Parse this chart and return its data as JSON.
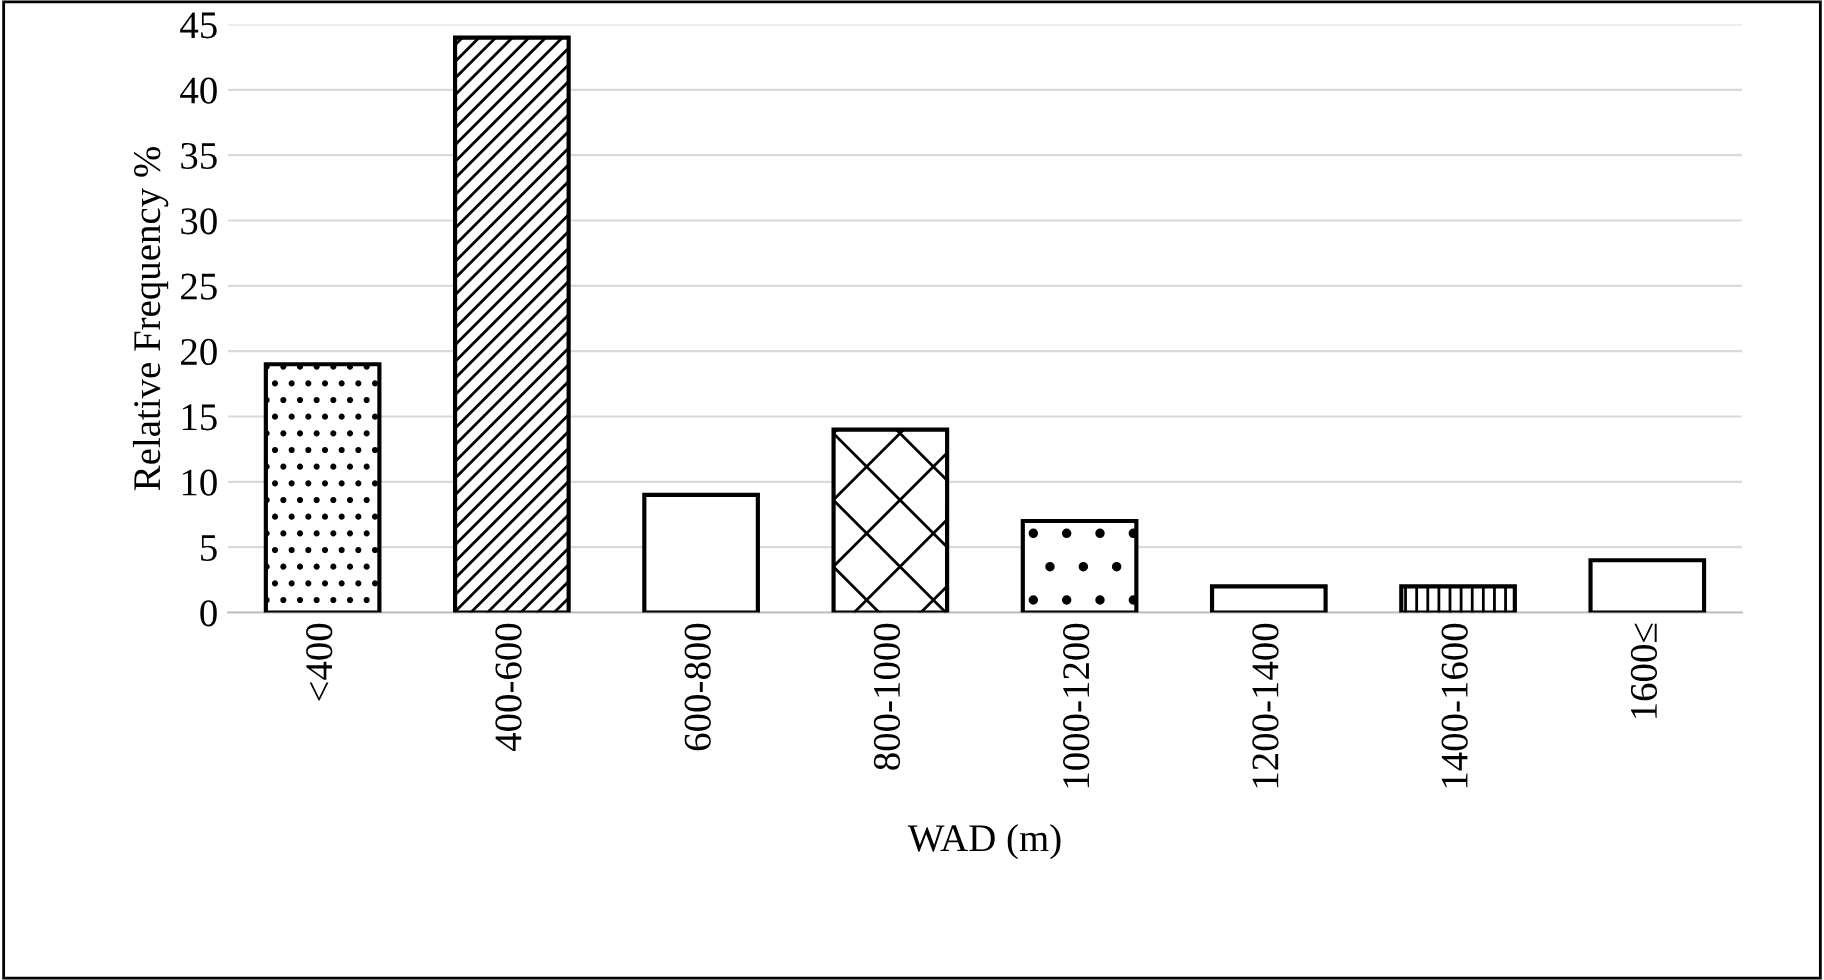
{
  "chart_data": {
    "type": "bar",
    "xlabel": "WAD (m)",
    "ylabel": "Relative Frequency %",
    "categories": [
      "<400",
      "400-600",
      "600-800",
      "800-1000",
      "1000-1200",
      "1200-1400",
      "1400-1600",
      "1600≤"
    ],
    "values": [
      19,
      44,
      9,
      14,
      7,
      2,
      2,
      4
    ],
    "color": "#000000",
    "ylim": [
      0,
      45
    ],
    "yticks": [
      0,
      5,
      10,
      15,
      20,
      25,
      30,
      35,
      40,
      45
    ],
    "grid": "y"
  }
}
